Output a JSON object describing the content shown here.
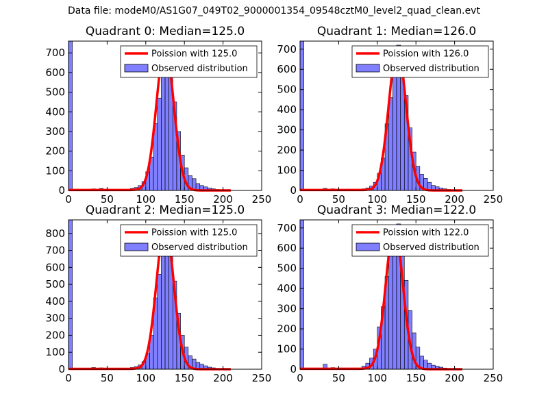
{
  "figure": {
    "title": "Data file: modeM0/AS1G07_049T02_9000001354_09548cztM0_level2_quad_clean.evt"
  },
  "chart_data": [
    {
      "type": "bar",
      "title": "Quadrant 0: Median=125.0",
      "xlim": [
        0,
        250
      ],
      "ylim": [
        0,
        760
      ],
      "xticks": [
        0,
        50,
        100,
        150,
        200,
        250
      ],
      "yticks": [
        0,
        100,
        200,
        300,
        400,
        500,
        600,
        700
      ],
      "bin_width": 5,
      "bin_lefts": [
        0,
        10,
        20,
        30,
        40,
        50,
        60,
        70,
        80,
        85,
        90,
        95,
        100,
        105,
        110,
        115,
        120,
        125,
        130,
        135,
        140,
        145,
        150,
        155,
        160,
        165,
        170,
        175,
        180,
        185,
        190,
        195,
        200,
        205
      ],
      "counts": [
        760,
        5,
        5,
        8,
        10,
        4,
        4,
        6,
        10,
        15,
        25,
        45,
        95,
        170,
        340,
        470,
        640,
        720,
        610,
        450,
        300,
        180,
        115,
        75,
        60,
        35,
        25,
        18,
        12,
        8,
        5,
        4,
        3,
        2
      ],
      "fit": {
        "label": "Poission with 125.0",
        "lambda": 125.0,
        "peak": 730,
        "color": "#ff0000"
      },
      "legend": [
        "Poission with 125.0",
        "Observed distribution"
      ]
    },
    {
      "type": "bar",
      "title": "Quadrant 1: Median=126.0",
      "xlim": [
        0,
        250
      ],
      "ylim": [
        0,
        740
      ],
      "xticks": [
        0,
        50,
        100,
        150,
        200,
        250
      ],
      "yticks": [
        0,
        100,
        200,
        300,
        400,
        500,
        600,
        700
      ],
      "bin_width": 5,
      "bin_lefts": [
        0,
        10,
        20,
        30,
        40,
        50,
        60,
        70,
        80,
        85,
        90,
        95,
        100,
        105,
        110,
        115,
        120,
        125,
        130,
        135,
        140,
        145,
        150,
        155,
        160,
        165,
        170,
        175,
        180,
        185,
        190,
        195,
        200,
        205
      ],
      "counts": [
        740,
        5,
        5,
        10,
        8,
        4,
        4,
        6,
        8,
        12,
        22,
        40,
        85,
        160,
        330,
        460,
        610,
        720,
        630,
        470,
        310,
        190,
        120,
        80,
        60,
        40,
        25,
        18,
        12,
        8,
        5,
        3,
        2,
        2
      ],
      "fit": {
        "label": "Poission with 126.0",
        "lambda": 126.0,
        "peak": 700,
        "color": "#ff0000"
      },
      "legend": [
        "Poission with 126.0",
        "Observed distribution"
      ]
    },
    {
      "type": "bar",
      "title": "Quadrant 2: Median=125.0",
      "xlim": [
        0,
        250
      ],
      "ylim": [
        0,
        880
      ],
      "xticks": [
        0,
        50,
        100,
        150,
        200,
        250
      ],
      "yticks": [
        0,
        100,
        200,
        300,
        400,
        500,
        600,
        700,
        800
      ],
      "bin_width": 5,
      "bin_lefts": [
        0,
        10,
        20,
        30,
        40,
        50,
        60,
        70,
        80,
        85,
        90,
        95,
        100,
        105,
        110,
        115,
        120,
        125,
        130,
        135,
        140,
        145,
        150,
        155,
        160,
        165,
        170,
        175,
        180,
        185,
        190,
        195,
        200,
        205
      ],
      "counts": [
        880,
        5,
        5,
        10,
        8,
        4,
        4,
        6,
        10,
        15,
        25,
        45,
        95,
        200,
        420,
        560,
        760,
        850,
        720,
        520,
        330,
        200,
        130,
        80,
        60,
        40,
        30,
        20,
        12,
        8,
        5,
        3,
        2,
        2
      ],
      "fit": {
        "label": "Poission with 125.0",
        "lambda": 125.0,
        "peak": 845,
        "color": "#ff0000"
      },
      "legend": [
        "Poission with 125.0",
        "Observed distribution"
      ]
    },
    {
      "type": "bar",
      "title": "Quadrant 3: Median=122.0",
      "xlim": [
        0,
        250
      ],
      "ylim": [
        0,
        740
      ],
      "xticks": [
        0,
        50,
        100,
        150,
        200,
        250
      ],
      "yticks": [
        0,
        100,
        200,
        300,
        400,
        500,
        600,
        700
      ],
      "bin_width": 5,
      "bin_lefts": [
        0,
        10,
        20,
        30,
        40,
        50,
        60,
        70,
        80,
        85,
        90,
        95,
        100,
        105,
        110,
        115,
        120,
        125,
        130,
        135,
        140,
        145,
        150,
        155,
        160,
        165,
        170,
        175,
        180,
        185,
        190,
        195,
        200
      ],
      "counts": [
        740,
        5,
        5,
        25,
        8,
        4,
        4,
        6,
        15,
        30,
        55,
        100,
        210,
        310,
        460,
        610,
        700,
        720,
        610,
        440,
        290,
        180,
        110,
        65,
        45,
        30,
        20,
        15,
        10,
        6,
        4,
        3,
        2
      ],
      "fit": {
        "label": "Poission with 122.0",
        "lambda": 122.0,
        "peak": 700,
        "color": "#ff0000"
      },
      "legend": [
        "Poission with 122.0",
        "Observed distribution"
      ]
    }
  ]
}
